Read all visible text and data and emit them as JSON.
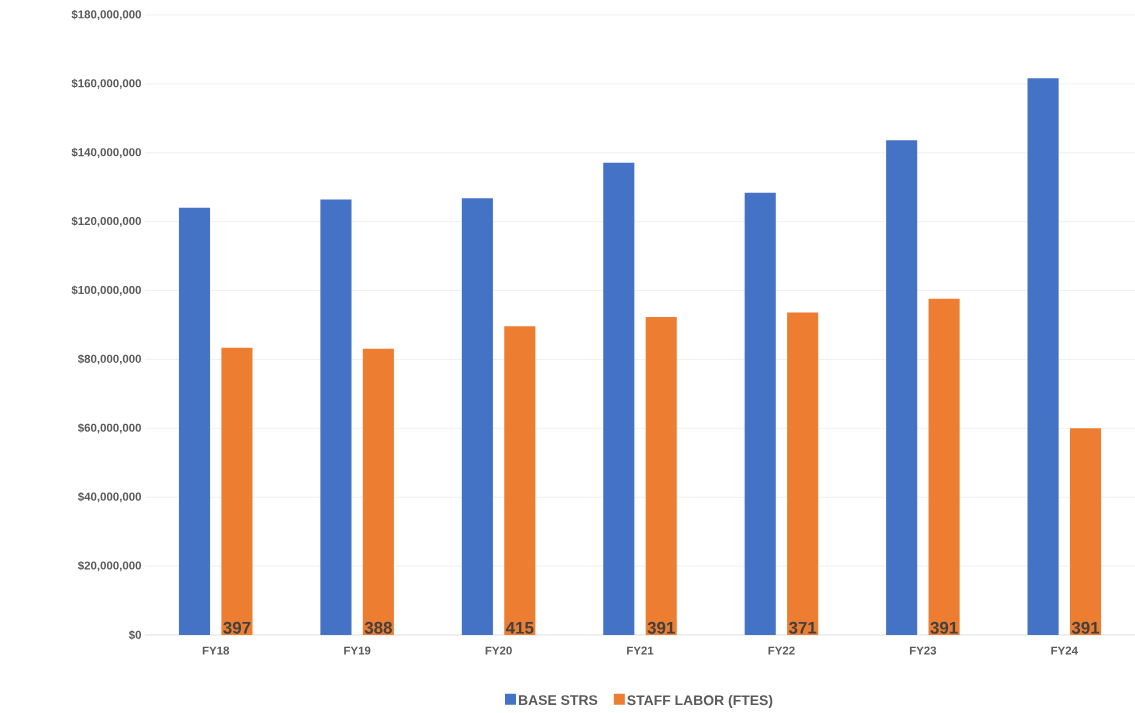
{
  "chart_data": {
    "type": "bar",
    "categories": [
      "FY18",
      "FY19",
      "FY20",
      "FY21",
      "FY22",
      "FY23",
      "FY24"
    ],
    "series": [
      {
        "name": "BASE STRS",
        "color": "#4472c4",
        "values": [
          124000000,
          126400000,
          126800000,
          137100000,
          128400000,
          143600000,
          161600000
        ]
      },
      {
        "name": "STAFF LABOR (FTES)",
        "color": "#ed7d31",
        "values": [
          83400000,
          83100000,
          89600000,
          92300000,
          93600000,
          97600000,
          60000000
        ]
      }
    ],
    "annotations": [
      "397",
      "388",
      "415",
      "391",
      "371",
      "391",
      "391"
    ],
    "ylim": [
      0,
      180000000
    ],
    "yticks": [
      {
        "value": 0,
        "label": "$0"
      },
      {
        "value": 20000000,
        "label": "$20,000,000"
      },
      {
        "value": 40000000,
        "label": "$40,000,000"
      },
      {
        "value": 60000000,
        "label": "$60,000,000"
      },
      {
        "value": 80000000,
        "label": "$80,000,000"
      },
      {
        "value": 100000000,
        "label": "$100,000,000"
      },
      {
        "value": 120000000,
        "label": "$120,000,000"
      },
      {
        "value": 140000000,
        "label": "$140,000,000"
      },
      {
        "value": 160000000,
        "label": "$160,000,000"
      },
      {
        "value": 180000000,
        "label": "$180,000,000"
      }
    ],
    "grid": "y",
    "legend": "bottom"
  }
}
